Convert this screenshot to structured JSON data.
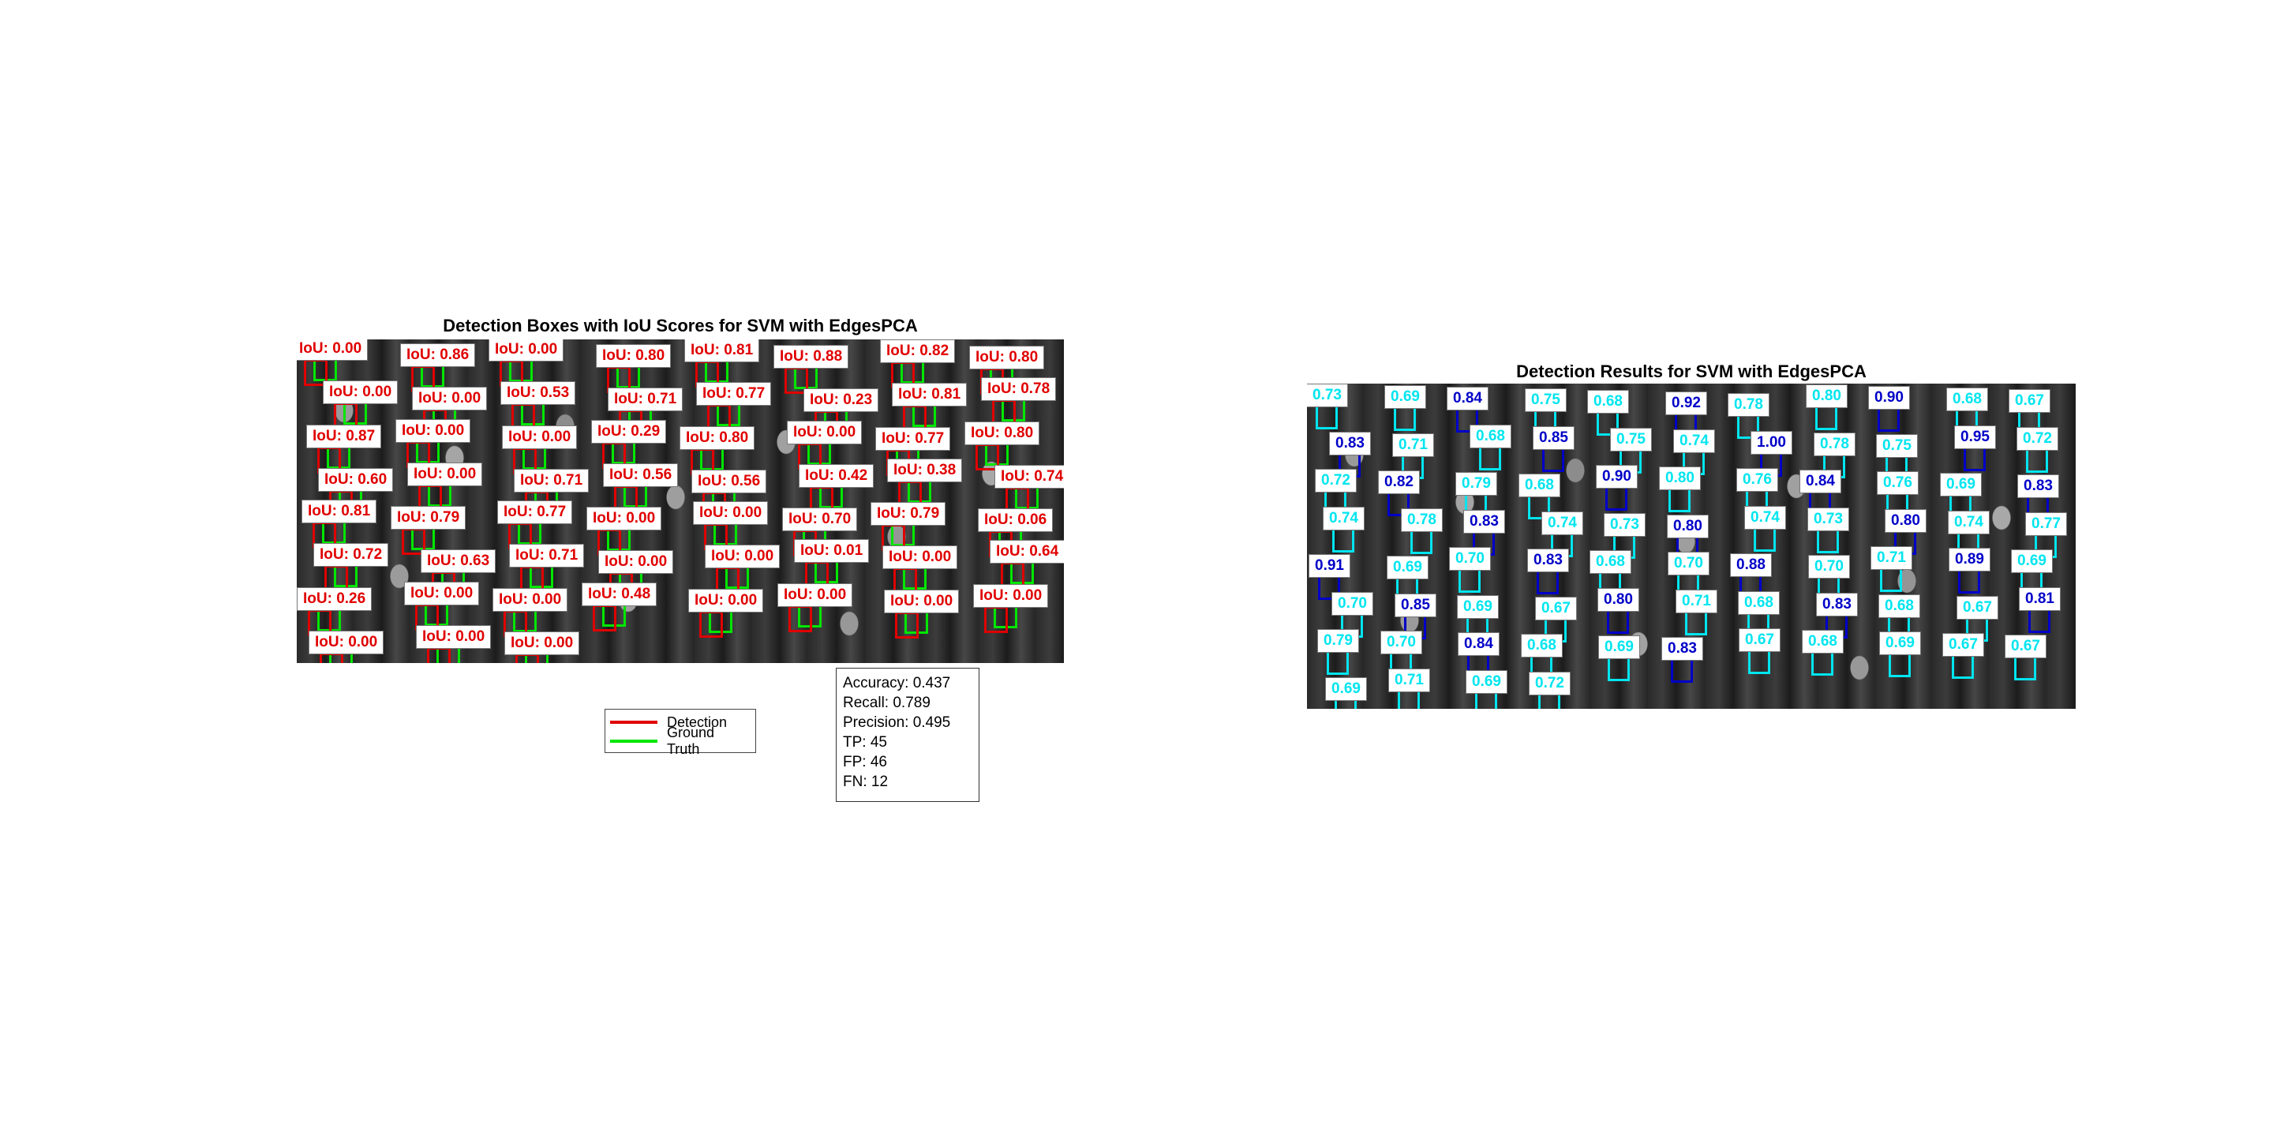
{
  "left_panel": {
    "title": "Detection Boxes with IoU Scores for SVM with EdgesPCA",
    "colors": {
      "detection": "#e00000",
      "ground_truth": "#00e600"
    },
    "iou_labels": [
      "IoU: 0.00",
      "IoU: 0.86",
      "IoU: 0.00",
      "IoU: 0.80",
      "IoU: 0.81",
      "IoU: 0.88",
      "IoU: 0.82",
      "IoU: 0.80",
      "IoU: 0.00",
      "IoU: 0.00",
      "IoU: 0.53",
      "IoU: 0.71",
      "IoU: 0.77",
      "IoU: 0.23",
      "IoU: 0.81",
      "IoU: 0.78",
      "IoU: 0.87",
      "IoU: 0.00",
      "IoU: 0.00",
      "IoU: 0.29",
      "IoU: 0.80",
      "IoU: 0.00",
      "IoU: 0.77",
      "IoU: 0.80",
      "IoU: 0.60",
      "IoU: 0.00",
      "IoU: 0.71",
      "IoU: 0.56",
      "IoU: 0.56",
      "IoU: 0.42",
      "IoU: 0.38",
      "IoU: 0.74",
      "IoU: 0.81",
      "IoU: 0.79",
      "IoU: 0.77",
      "IoU: 0.00",
      "IoU: 0.00",
      "IoU: 0.70",
      "IoU: 0.79",
      "IoU: 0.06",
      "IoU: 0.72",
      "IoU: 0.63",
      "IoU: 0.71",
      "IoU: 0.00",
      "IoU: 0.00",
      "IoU: 0.01",
      "IoU: 0.00",
      "IoU: 0.64",
      "IoU: 0.26",
      "IoU: 0.00",
      "IoU: 0.00",
      "IoU: 0.48",
      "IoU: 0.00",
      "IoU: 0.00",
      "IoU: 0.00",
      "IoU: 0.00",
      "IoU: 0.00",
      "IoU: 0.00",
      "IoU: 0.00"
    ],
    "stats": {
      "accuracy": "Accuracy: 0.437",
      "recall": "Recall: 0.789",
      "precision": "Precision: 0.495",
      "tp": "TP: 45",
      "fp": "FP: 46",
      "fn": "FN: 12"
    },
    "legend": {
      "detection": "Detection",
      "ground_truth": "Ground Truth"
    }
  },
  "right_panel": {
    "title": "Detection Results for SVM with EdgesPCA",
    "colors": {
      "low_confidence": "#00e5ef",
      "high_confidence": "#0000c8"
    },
    "scores_cyan": [
      "0.73",
      "0.69",
      "0.75",
      "0.68",
      "0.78",
      "0.80",
      "0.68",
      "0.67",
      "0.71",
      "0.68",
      "0.75",
      "0.74",
      "0.78",
      "0.75",
      "0.72",
      "0.72",
      "0.79",
      "0.68",
      "0.80",
      "0.76",
      "0.76",
      "0.69",
      "0.74",
      "0.78",
      "0.74",
      "0.73",
      "0.74",
      "0.73",
      "0.74",
      "0.77",
      "0.69",
      "0.70",
      "0.68",
      "0.70",
      "0.70",
      "0.71",
      "0.69",
      "0.70",
      "0.69",
      "0.67",
      "0.71",
      "0.68",
      "0.68",
      "0.67",
      "0.79",
      "0.70",
      "0.68",
      "0.69",
      "0.67",
      "0.68",
      "0.69",
      "0.67",
      "0.67",
      "0.69",
      "0.71",
      "0.69",
      "0.72"
    ],
    "scores_navy": [
      "0.84",
      "0.92",
      "0.90",
      "0.83",
      "0.85",
      "1.00",
      "0.95",
      "0.82",
      "0.90",
      "0.84",
      "0.83",
      "0.83",
      "0.80",
      "0.80",
      "0.91",
      "0.83",
      "0.88",
      "0.89",
      "0.85",
      "0.80",
      "0.83",
      "0.81",
      "0.84",
      "0.83"
    ]
  }
}
